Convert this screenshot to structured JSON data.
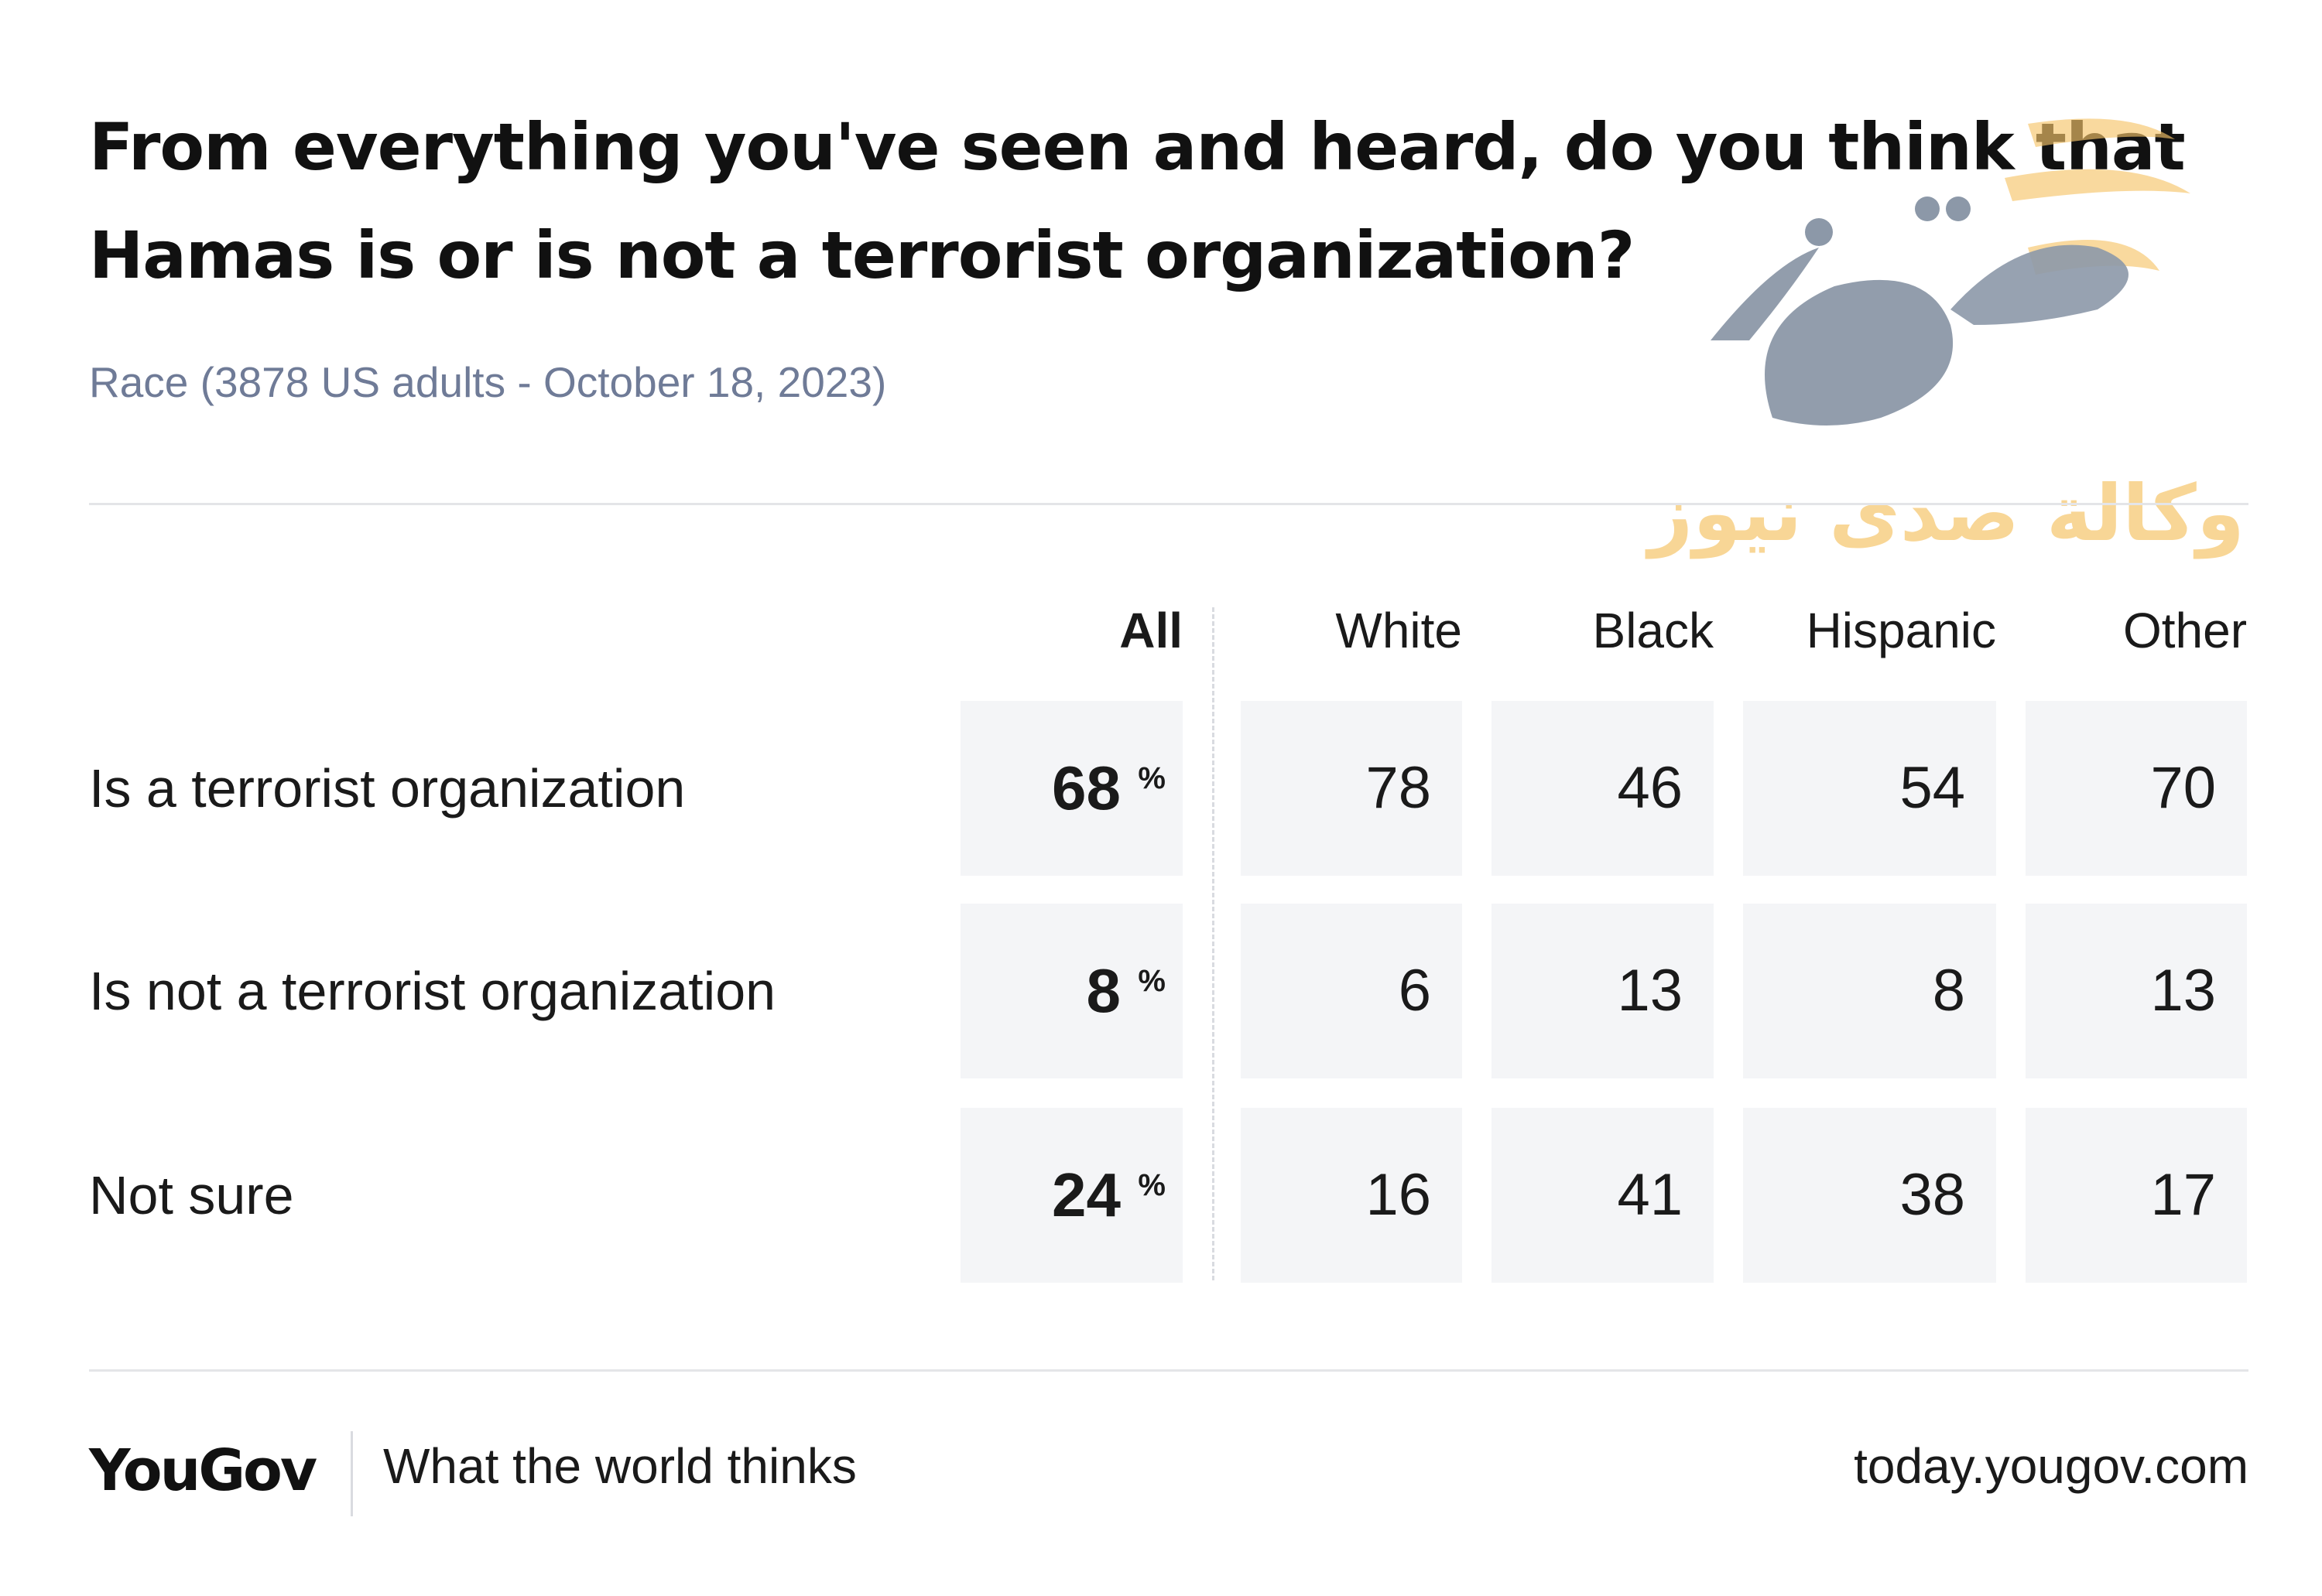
{
  "header": {
    "title_line1": "From everything you've seen and heard, do you think that",
    "title_line2": "Hamas is or is not a terrorist organization?",
    "subtitle": "Race (3878 US adults - October 18, 2023)"
  },
  "watermark": {
    "text": "وكالة صدى نيوز"
  },
  "chart_data": {
    "type": "table",
    "columns": [
      "All",
      "White",
      "Black",
      "Hispanic",
      "Other"
    ],
    "rows": [
      {
        "label": "Is a terrorist organization",
        "values": [
          "68",
          "78",
          "46",
          "54",
          "70"
        ]
      },
      {
        "label": "Is not a terrorist organization",
        "values": [
          "8",
          "6",
          "13",
          "8",
          "13"
        ]
      },
      {
        "label": "Not sure",
        "values": [
          "24",
          "16",
          "41",
          "38",
          "17"
        ]
      }
    ],
    "unit": "%"
  },
  "footer": {
    "brand": "YouGov",
    "tagline": "What the world thinks",
    "site": "today.yougov.com"
  },
  "colors": {
    "cell_bg": "#f4f5f7",
    "subtitle": "#6f7b97",
    "watermark_gold": "#f6c56a",
    "watermark_gray": "#8c98a8"
  }
}
